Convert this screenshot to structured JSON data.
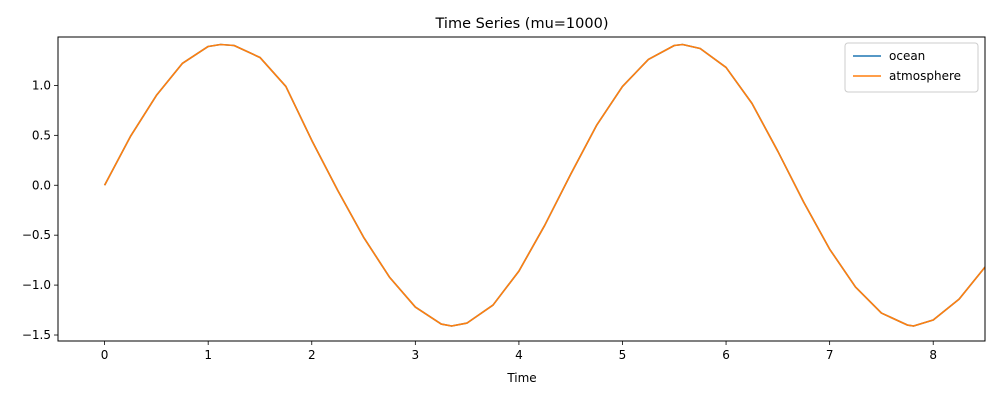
{
  "chart_data": {
    "type": "line",
    "title": "Time Series (mu=1000)",
    "xlabel": "Time",
    "ylabel": "",
    "xlim": [
      -0.45,
      8.5
    ],
    "ylim": [
      -1.56,
      1.485
    ],
    "xticks": [
      0,
      1,
      2,
      3,
      4,
      5,
      6,
      7,
      8
    ],
    "xtick_labels": [
      "0",
      "1",
      "2",
      "3",
      "4",
      "5",
      "6",
      "7",
      "8"
    ],
    "yticks": [
      -1.5,
      -1.0,
      -0.5,
      0.0,
      0.5,
      1.0
    ],
    "ytick_labels": [
      "−1.5",
      "−1.0",
      "−0.5",
      "0.0",
      "0.5",
      "1.0"
    ],
    "grid": false,
    "legend": "top-right",
    "series": [
      {
        "name": "ocean",
        "color": "#1f77b4",
        "x": [
          0,
          0.25,
          0.5,
          0.75,
          1.0,
          1.12,
          1.25,
          1.5,
          1.75,
          2.0,
          2.25,
          2.5,
          2.75,
          3.0,
          3.25,
          3.35,
          3.5,
          3.75,
          4.0,
          4.25,
          4.5,
          4.75,
          5.0,
          5.25,
          5.5,
          5.58,
          5.75,
          6.0,
          6.25,
          6.5,
          6.75,
          7.0,
          7.25,
          7.5,
          7.75,
          7.81,
          8.0,
          8.25,
          8.5
        ],
        "y": [
          0.0,
          0.49,
          0.9,
          1.22,
          1.39,
          1.41,
          1.4,
          1.28,
          0.99,
          0.45,
          -0.05,
          -0.52,
          -0.92,
          -1.22,
          -1.39,
          -1.41,
          -1.38,
          -1.2,
          -0.86,
          -0.4,
          0.11,
          0.6,
          0.99,
          1.26,
          1.4,
          1.41,
          1.37,
          1.18,
          0.82,
          0.34,
          -0.17,
          -0.64,
          -1.02,
          -1.28,
          -1.4,
          -1.41,
          -1.35,
          -1.14,
          -0.82
        ]
      },
      {
        "name": "atmosphere",
        "color": "#ff7f0e",
        "x": [
          0,
          0.25,
          0.5,
          0.75,
          1.0,
          1.12,
          1.25,
          1.5,
          1.75,
          2.0,
          2.25,
          2.5,
          2.75,
          3.0,
          3.25,
          3.35,
          3.5,
          3.75,
          4.0,
          4.25,
          4.5,
          4.75,
          5.0,
          5.25,
          5.5,
          5.58,
          5.75,
          6.0,
          6.25,
          6.5,
          6.75,
          7.0,
          7.25,
          7.5,
          7.75,
          7.81,
          8.0,
          8.25,
          8.5
        ],
        "y": [
          0.0,
          0.49,
          0.9,
          1.22,
          1.39,
          1.41,
          1.4,
          1.28,
          0.99,
          0.45,
          -0.05,
          -0.52,
          -0.92,
          -1.22,
          -1.39,
          -1.41,
          -1.38,
          -1.2,
          -0.86,
          -0.4,
          0.11,
          0.6,
          0.99,
          1.26,
          1.4,
          1.41,
          1.37,
          1.18,
          0.82,
          0.34,
          -0.17,
          -0.64,
          -1.02,
          -1.28,
          -1.4,
          -1.41,
          -1.35,
          -1.14,
          -0.82
        ]
      }
    ]
  }
}
